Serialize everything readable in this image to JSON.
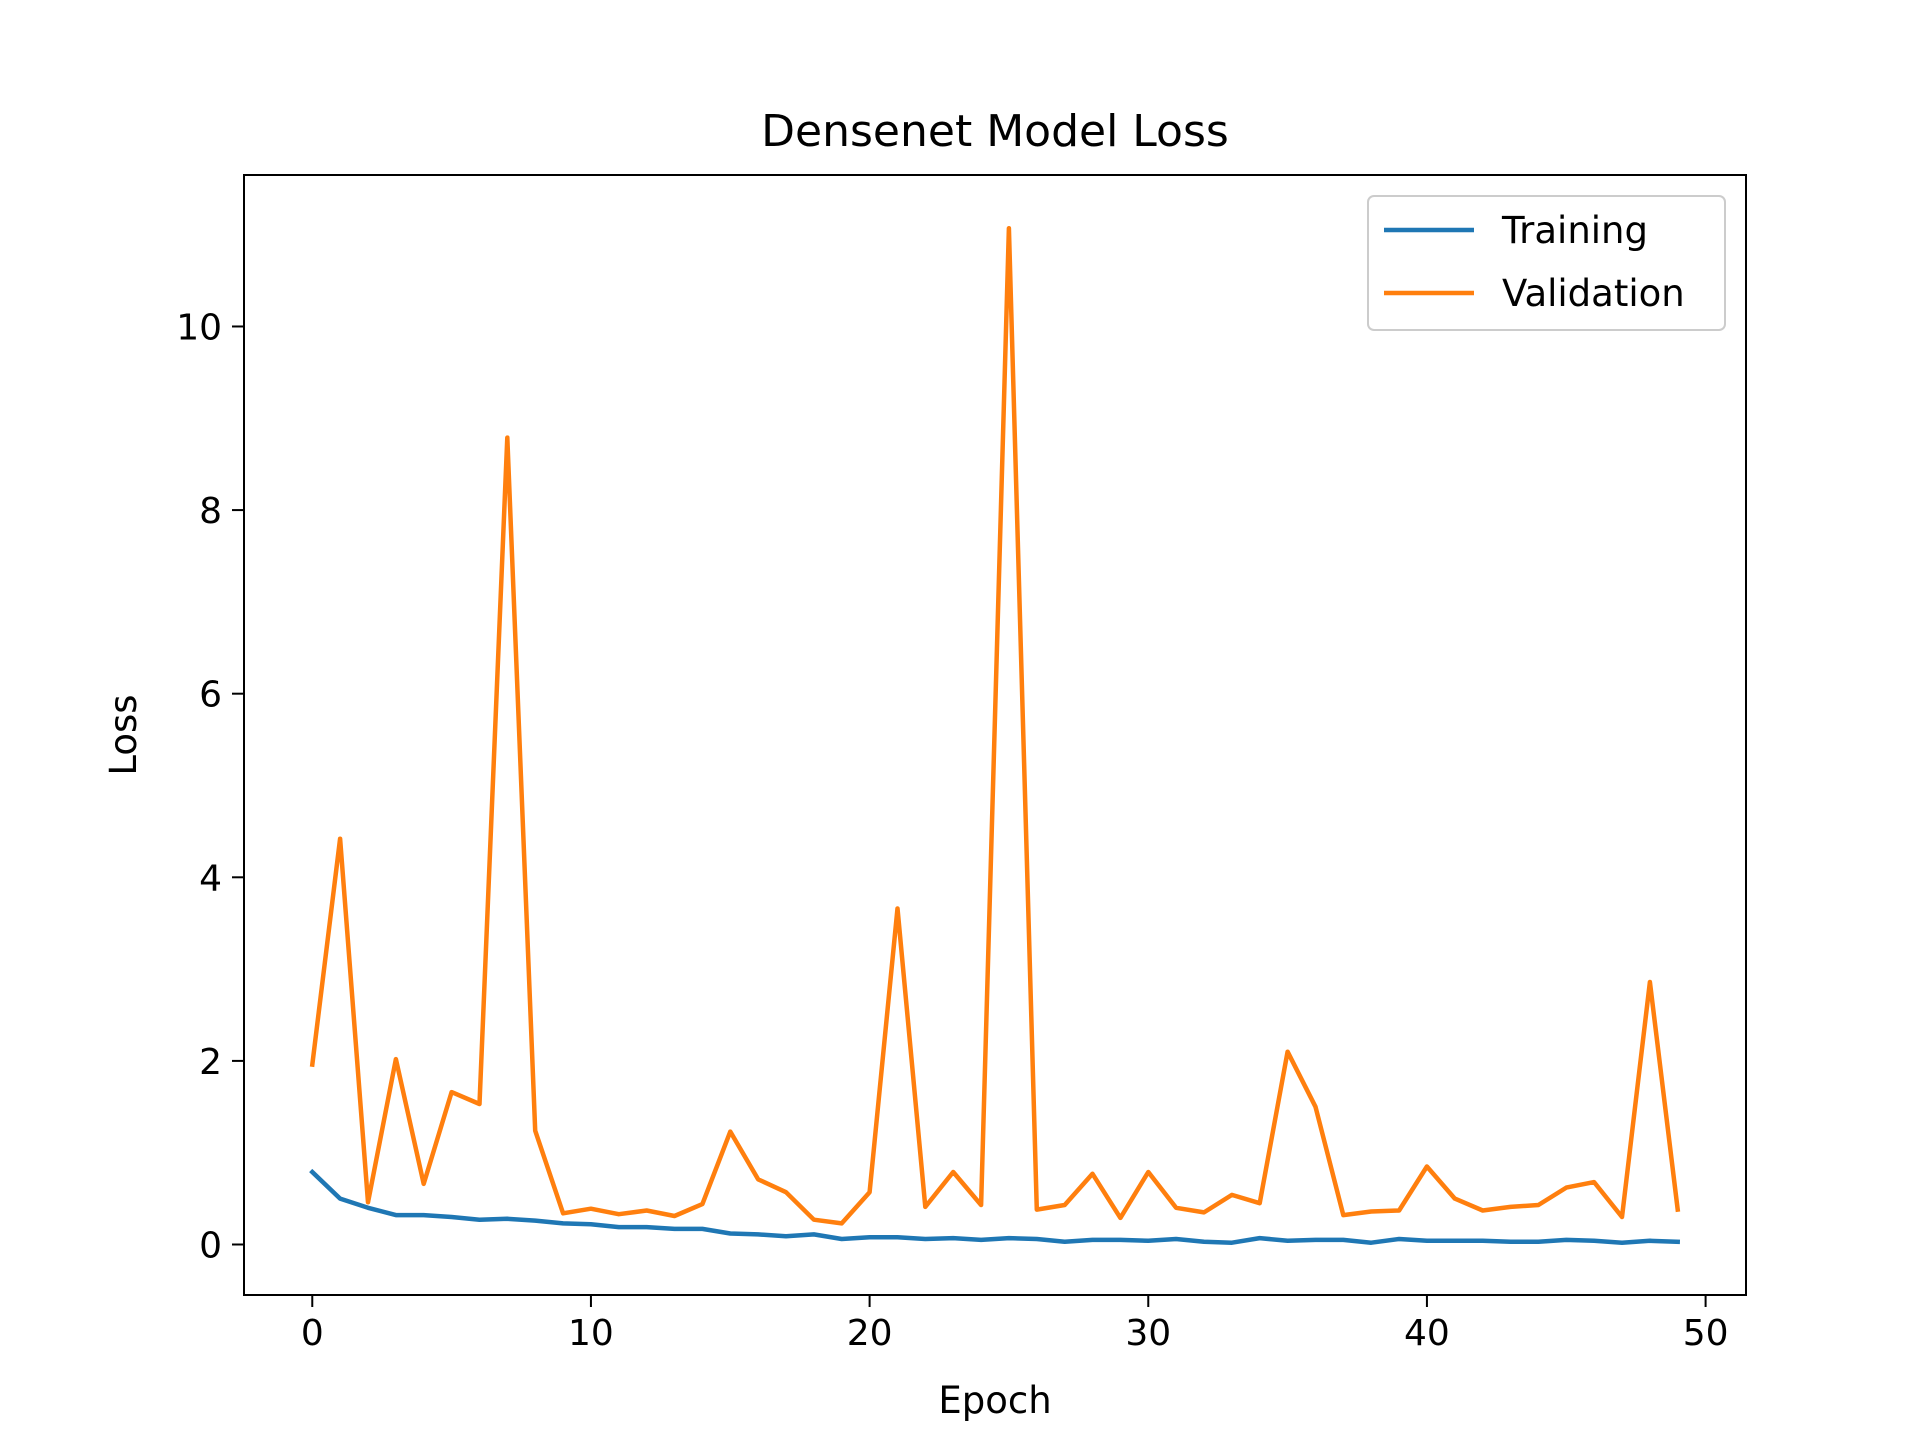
{
  "chart_data": {
    "type": "line",
    "title": "Densenet Model Loss",
    "xlabel": "Epoch",
    "ylabel": "Loss",
    "xlim": [
      -2.45,
      51.45
    ],
    "ylim": [
      -0.55,
      11.65
    ],
    "xticks": [
      0,
      10,
      20,
      30,
      40,
      50
    ],
    "yticks": [
      0,
      2,
      4,
      6,
      8,
      10
    ],
    "grid": false,
    "legend_position": "top-right",
    "x": [
      0,
      1,
      2,
      3,
      4,
      5,
      6,
      7,
      8,
      9,
      10,
      11,
      12,
      13,
      14,
      15,
      16,
      17,
      18,
      19,
      20,
      21,
      22,
      23,
      24,
      25,
      26,
      27,
      28,
      29,
      30,
      31,
      32,
      33,
      34,
      35,
      36,
      37,
      38,
      39,
      40,
      41,
      42,
      43,
      44,
      45,
      46,
      47,
      48,
      49
    ],
    "series": [
      {
        "name": "Training",
        "color": "#1f77b4",
        "values": [
          0.79,
          0.5,
          0.4,
          0.32,
          0.32,
          0.3,
          0.27,
          0.28,
          0.26,
          0.23,
          0.22,
          0.19,
          0.19,
          0.17,
          0.17,
          0.12,
          0.11,
          0.09,
          0.11,
          0.06,
          0.08,
          0.08,
          0.06,
          0.07,
          0.05,
          0.07,
          0.06,
          0.03,
          0.05,
          0.05,
          0.04,
          0.06,
          0.03,
          0.02,
          0.07,
          0.04,
          0.05,
          0.05,
          0.02,
          0.06,
          0.04,
          0.04,
          0.04,
          0.03,
          0.03,
          0.05,
          0.04,
          0.02,
          0.04,
          0.03
        ]
      },
      {
        "name": "Validation",
        "color": "#ff7f0e",
        "values": [
          1.96,
          4.42,
          0.46,
          2.02,
          0.66,
          1.66,
          1.53,
          8.79,
          1.24,
          0.34,
          0.39,
          0.33,
          0.37,
          0.31,
          0.44,
          1.23,
          0.71,
          0.57,
          0.27,
          0.23,
          0.57,
          3.66,
          0.41,
          0.79,
          0.43,
          11.07,
          0.38,
          0.43,
          0.77,
          0.29,
          0.79,
          0.4,
          0.35,
          0.54,
          0.45,
          2.1,
          1.5,
          0.32,
          0.36,
          0.37,
          0.85,
          0.5,
          0.37,
          0.41,
          0.43,
          0.62,
          0.68,
          0.3,
          2.86,
          0.38
        ]
      }
    ]
  }
}
